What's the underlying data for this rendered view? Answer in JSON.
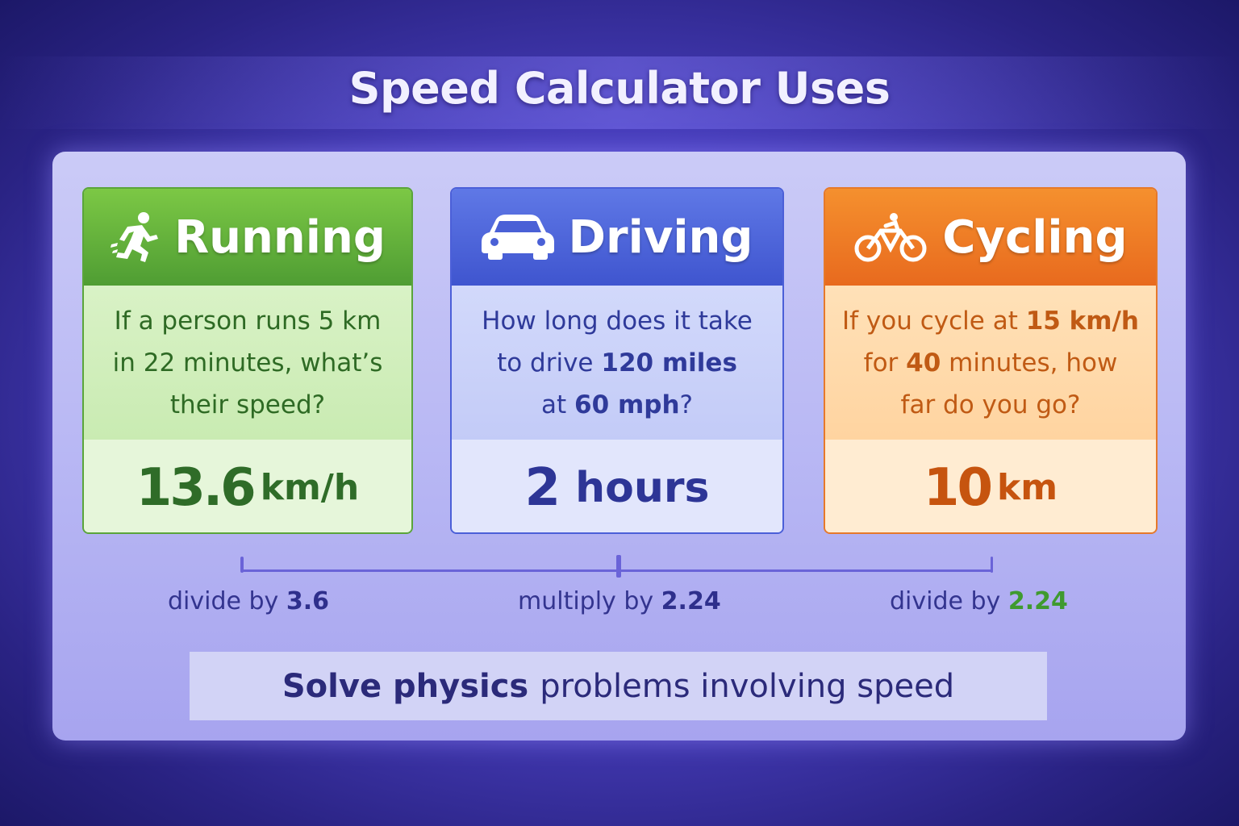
{
  "title": "Speed Calculator Uses",
  "colors": {
    "running": "#5aa53a",
    "driving": "#4b5fd8",
    "cycling": "#e6792a",
    "background": "#2a2384"
  },
  "cards": [
    {
      "id": "running",
      "label": "Running",
      "icon": "running-person-icon",
      "question": [
        [
          {
            "t": "If a person runs 5 km"
          }
        ],
        [
          {
            "t": "in 22 minutes, what’s"
          }
        ],
        [
          {
            "t": "their speed?"
          }
        ]
      ],
      "answer_value": "13.6",
      "answer_unit": "km/h"
    },
    {
      "id": "driving",
      "label": "Driving",
      "icon": "car-icon",
      "question": [
        [
          {
            "t": "How long does it take"
          }
        ],
        [
          {
            "t": "to drive "
          },
          {
            "t": "120 miles",
            "b": true
          }
        ],
        [
          {
            "t": "at "
          },
          {
            "t": "60 mph",
            "b": true
          },
          {
            "t": "?"
          }
        ]
      ],
      "answer_value": "2",
      "answer_unit": "hours"
    },
    {
      "id": "cycling",
      "label": "Cycling",
      "icon": "cyclist-icon",
      "question": [
        [
          {
            "t": "If you cycle at "
          },
          {
            "t": "15 km/h",
            "b": true
          }
        ],
        [
          {
            "t": "for "
          },
          {
            "t": "40",
            "b": true
          },
          {
            "t": " minutes, how"
          }
        ],
        [
          {
            "t": "far do you go?"
          }
        ]
      ],
      "answer_value": "10",
      "answer_unit": "km"
    }
  ],
  "conversions": [
    {
      "text": "divide by ",
      "value": "3.6"
    },
    {
      "text": "multiply by ",
      "value": "2.24"
    },
    {
      "text": "divide by ",
      "value": "2.24",
      "value_color": "#3f9a2f"
    }
  ],
  "footer": {
    "bold": "Solve physics",
    "rest": "problems involving speed"
  }
}
